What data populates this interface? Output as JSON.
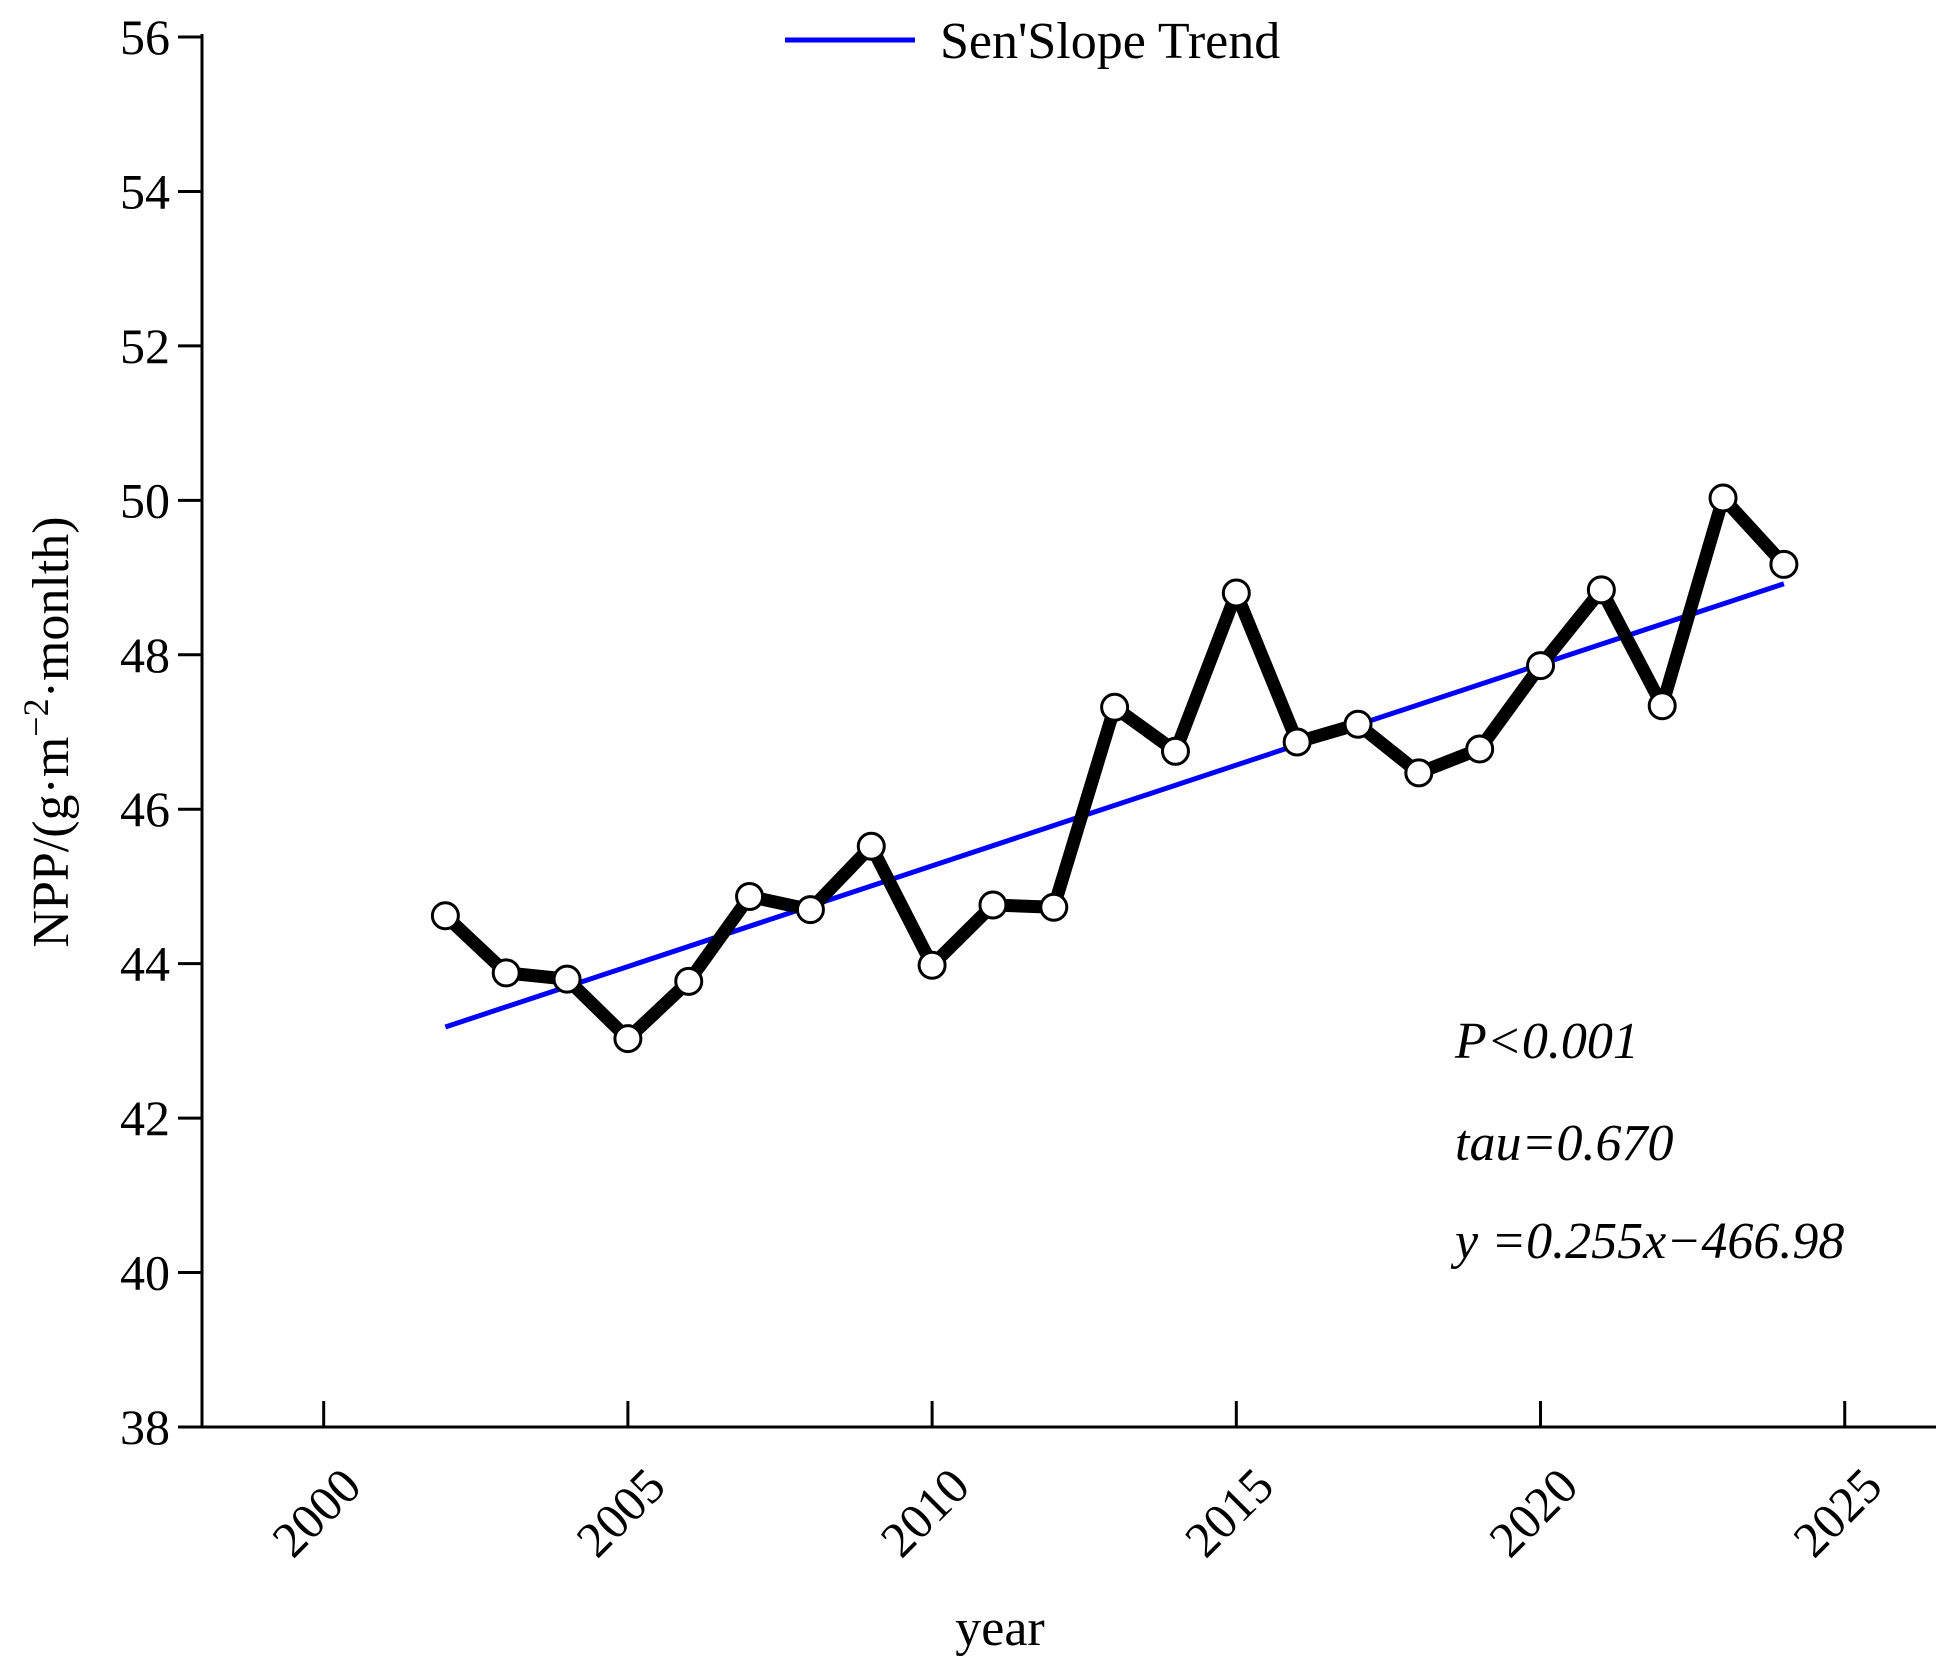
{
  "chart_data": {
    "type": "line",
    "title": "",
    "xlabel": "year",
    "ylabel": "NPP/(g·m⁻²·monlth)",
    "ylabel_parts": {
      "prefix": "NPP/(g·m",
      "sup": "−2",
      "suffix": "·monlth)"
    },
    "xlim": [
      1998,
      2026.5
    ],
    "ylim": [
      38,
      56
    ],
    "xticks": [
      2000,
      2005,
      2010,
      2015,
      2020,
      2025
    ],
    "yticks": [
      38,
      40,
      42,
      44,
      46,
      48,
      50,
      52,
      54,
      56
    ],
    "grid": false,
    "legend": {
      "position": "top-center",
      "entries": [
        "Sen'Slope Trend"
      ]
    },
    "series": [
      {
        "name": "NPP",
        "color": "#000000",
        "marker": "open-circle",
        "x": [
          2002,
          2003,
          2004,
          2005,
          2006,
          2007,
          2008,
          2009,
          2010,
          2011,
          2012,
          2013,
          2014,
          2015,
          2016,
          2017,
          2018,
          2019,
          2020,
          2021,
          2022,
          2023,
          2024
        ],
        "y": [
          44.62,
          43.88,
          43.8,
          43.03,
          43.77,
          44.87,
          44.7,
          45.52,
          43.98,
          44.76,
          44.73,
          47.32,
          46.75,
          48.8,
          46.87,
          47.1,
          46.47,
          46.78,
          47.86,
          48.84,
          47.34,
          50.03,
          49.17
        ]
      },
      {
        "name": "Sen'Slope Trend",
        "color": "#0000ff",
        "x": [
          2002,
          2024
        ],
        "y": [
          43.18,
          48.92
        ]
      }
    ],
    "annotations": [
      "P<0.001",
      "tau=0.670",
      "y =0.255x−466.98"
    ]
  }
}
